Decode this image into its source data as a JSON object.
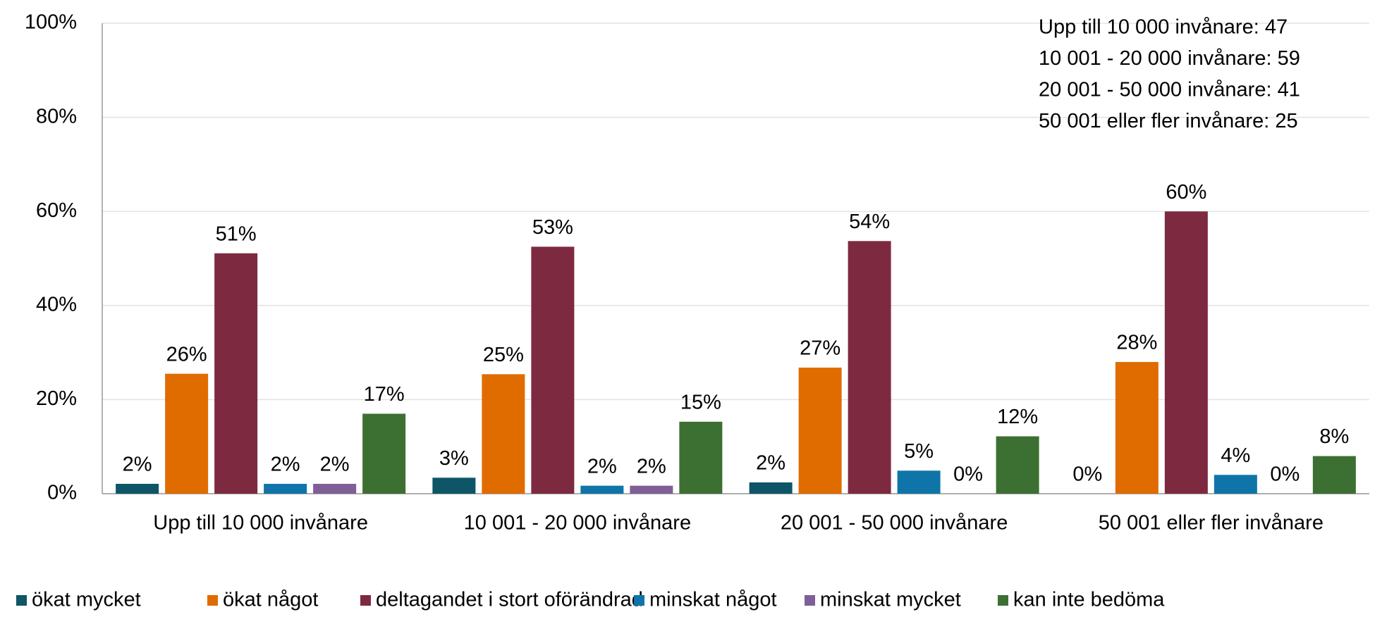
{
  "chart_data": {
    "type": "bar",
    "categories": [
      "Upp till 10 000 invånare",
      "10 001 - 20 000 invånare",
      "20 001 - 50 000 invånare",
      "50 001 eller fler invånare"
    ],
    "series": [
      {
        "name": "ökat mycket",
        "color": "#0d5567",
        "values": [
          2.1,
          3.4,
          2.4,
          0
        ],
        "value_labels": [
          "2%",
          "3%",
          "2%",
          "0%"
        ]
      },
      {
        "name": "ökat något",
        "color": "#e06c00",
        "values": [
          25.5,
          25.4,
          26.8,
          28
        ],
        "value_labels": [
          "26%",
          "25%",
          "27%",
          "28%"
        ]
      },
      {
        "name": "deltagandet i stort oförändrad",
        "color": "#7d2a41",
        "values": [
          51.1,
          52.5,
          53.7,
          60
        ],
        "value_labels": [
          "51%",
          "53%",
          "54%",
          "60%"
        ]
      },
      {
        "name": "minskat något",
        "color": "#0f75a8",
        "values": [
          2.1,
          1.7,
          4.9,
          4
        ],
        "value_labels": [
          "2%",
          "2%",
          "5%",
          "4%"
        ]
      },
      {
        "name": "minskat mycket",
        "color": "#7f5f98",
        "values": [
          2.1,
          1.7,
          0,
          0
        ],
        "value_labels": [
          "2%",
          "2%",
          "0%",
          "0%"
        ]
      },
      {
        "name": "kan inte bedöma",
        "color": "#3c7032",
        "values": [
          17,
          15.3,
          12.2,
          8
        ],
        "value_labels": [
          "17%",
          "15%",
          "12%",
          "8%"
        ]
      }
    ],
    "ylim": [
      0,
      100
    ],
    "yticks": [
      {
        "value": 0,
        "label": "0%"
      },
      {
        "value": 20,
        "label": "20%"
      },
      {
        "value": 40,
        "label": "40%"
      },
      {
        "value": 60,
        "label": "60%"
      },
      {
        "value": 80,
        "label": "80%"
      },
      {
        "value": 100,
        "label": "100%"
      }
    ],
    "grid": true,
    "legend": "bottom",
    "annotations": [
      "Upp till 10 000 invånare: 47",
      "10 001 - 20 000 invånare: 59",
      "20 001 - 50 000 invånare: 41",
      "50 001 eller fler invånare: 25"
    ]
  }
}
